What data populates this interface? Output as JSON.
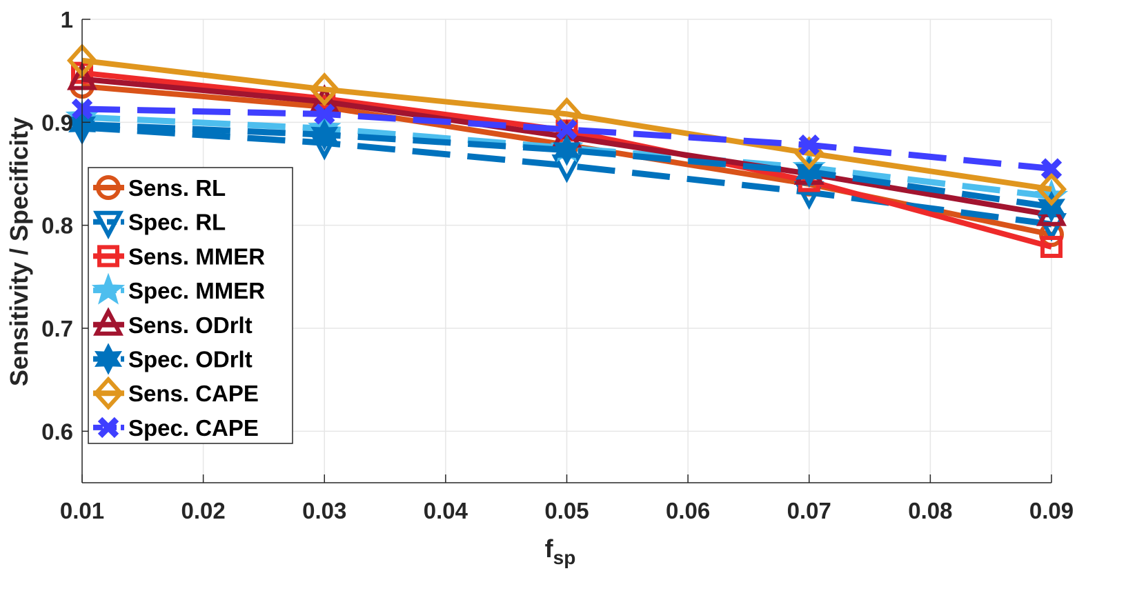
{
  "chart_data": {
    "type": "line",
    "title": "",
    "xlabel": "f",
    "xlabel_sub": "sp",
    "ylabel": "Sensitivity / Specificity",
    "xlim": [
      0.01,
      0.09
    ],
    "ylim": [
      0.55,
      1
    ],
    "grid": true,
    "legend_position": "left-middle",
    "x": [
      0.01,
      0.03,
      0.05,
      0.07,
      0.09
    ],
    "xticks": [
      "0.01",
      "0.02",
      "0.03",
      "0.04",
      "0.05",
      "0.06",
      "0.07",
      "0.08",
      "0.09"
    ],
    "xtick_values": [
      0.01,
      0.02,
      0.03,
      0.04,
      0.05,
      0.06,
      0.07,
      0.08,
      0.09
    ],
    "yticks": [
      "0.6",
      "0.7",
      "0.8",
      "0.9",
      "1"
    ],
    "ytick_values": [
      0.6,
      0.7,
      0.8,
      0.9,
      1
    ],
    "series": [
      {
        "name": "Sens. RL",
        "color": "#D95319",
        "dash": false,
        "marker": "circle",
        "values": [
          0.935,
          0.915,
          0.878,
          0.84,
          0.791
        ]
      },
      {
        "name": "Spec. RL",
        "color": "#0072BD",
        "dash": true,
        "marker": "triangle-down",
        "values": [
          0.895,
          0.88,
          0.858,
          0.832,
          0.801
        ]
      },
      {
        "name": "Sens. MMER",
        "color": "#EE2A2A",
        "dash": false,
        "marker": "square",
        "values": [
          0.948,
          0.923,
          0.892,
          0.843,
          0.779
        ]
      },
      {
        "name": "Spec. MMER",
        "color": "#4DBEEE",
        "dash": true,
        "marker": "star",
        "values": [
          0.905,
          0.894,
          0.875,
          0.856,
          0.828
        ]
      },
      {
        "name": "Sens. ODrlt",
        "color": "#A2142F",
        "dash": false,
        "marker": "triangle-up",
        "values": [
          0.942,
          0.92,
          0.886,
          0.85,
          0.81
        ]
      },
      {
        "name": "Spec. ODrlt",
        "color": "#0072BD",
        "dash": true,
        "marker": "hexagram",
        "values": [
          0.898,
          0.888,
          0.873,
          0.852,
          0.818
        ]
      },
      {
        "name": "Sens. CAPE",
        "color": "#E0961E",
        "dash": false,
        "marker": "diamond",
        "values": [
          0.96,
          0.932,
          0.908,
          0.87,
          0.835
        ]
      },
      {
        "name": "Spec. CAPE",
        "color": "#3F3FFF",
        "dash": true,
        "marker": "x",
        "values": [
          0.913,
          0.908,
          0.893,
          0.878,
          0.855
        ]
      }
    ]
  }
}
